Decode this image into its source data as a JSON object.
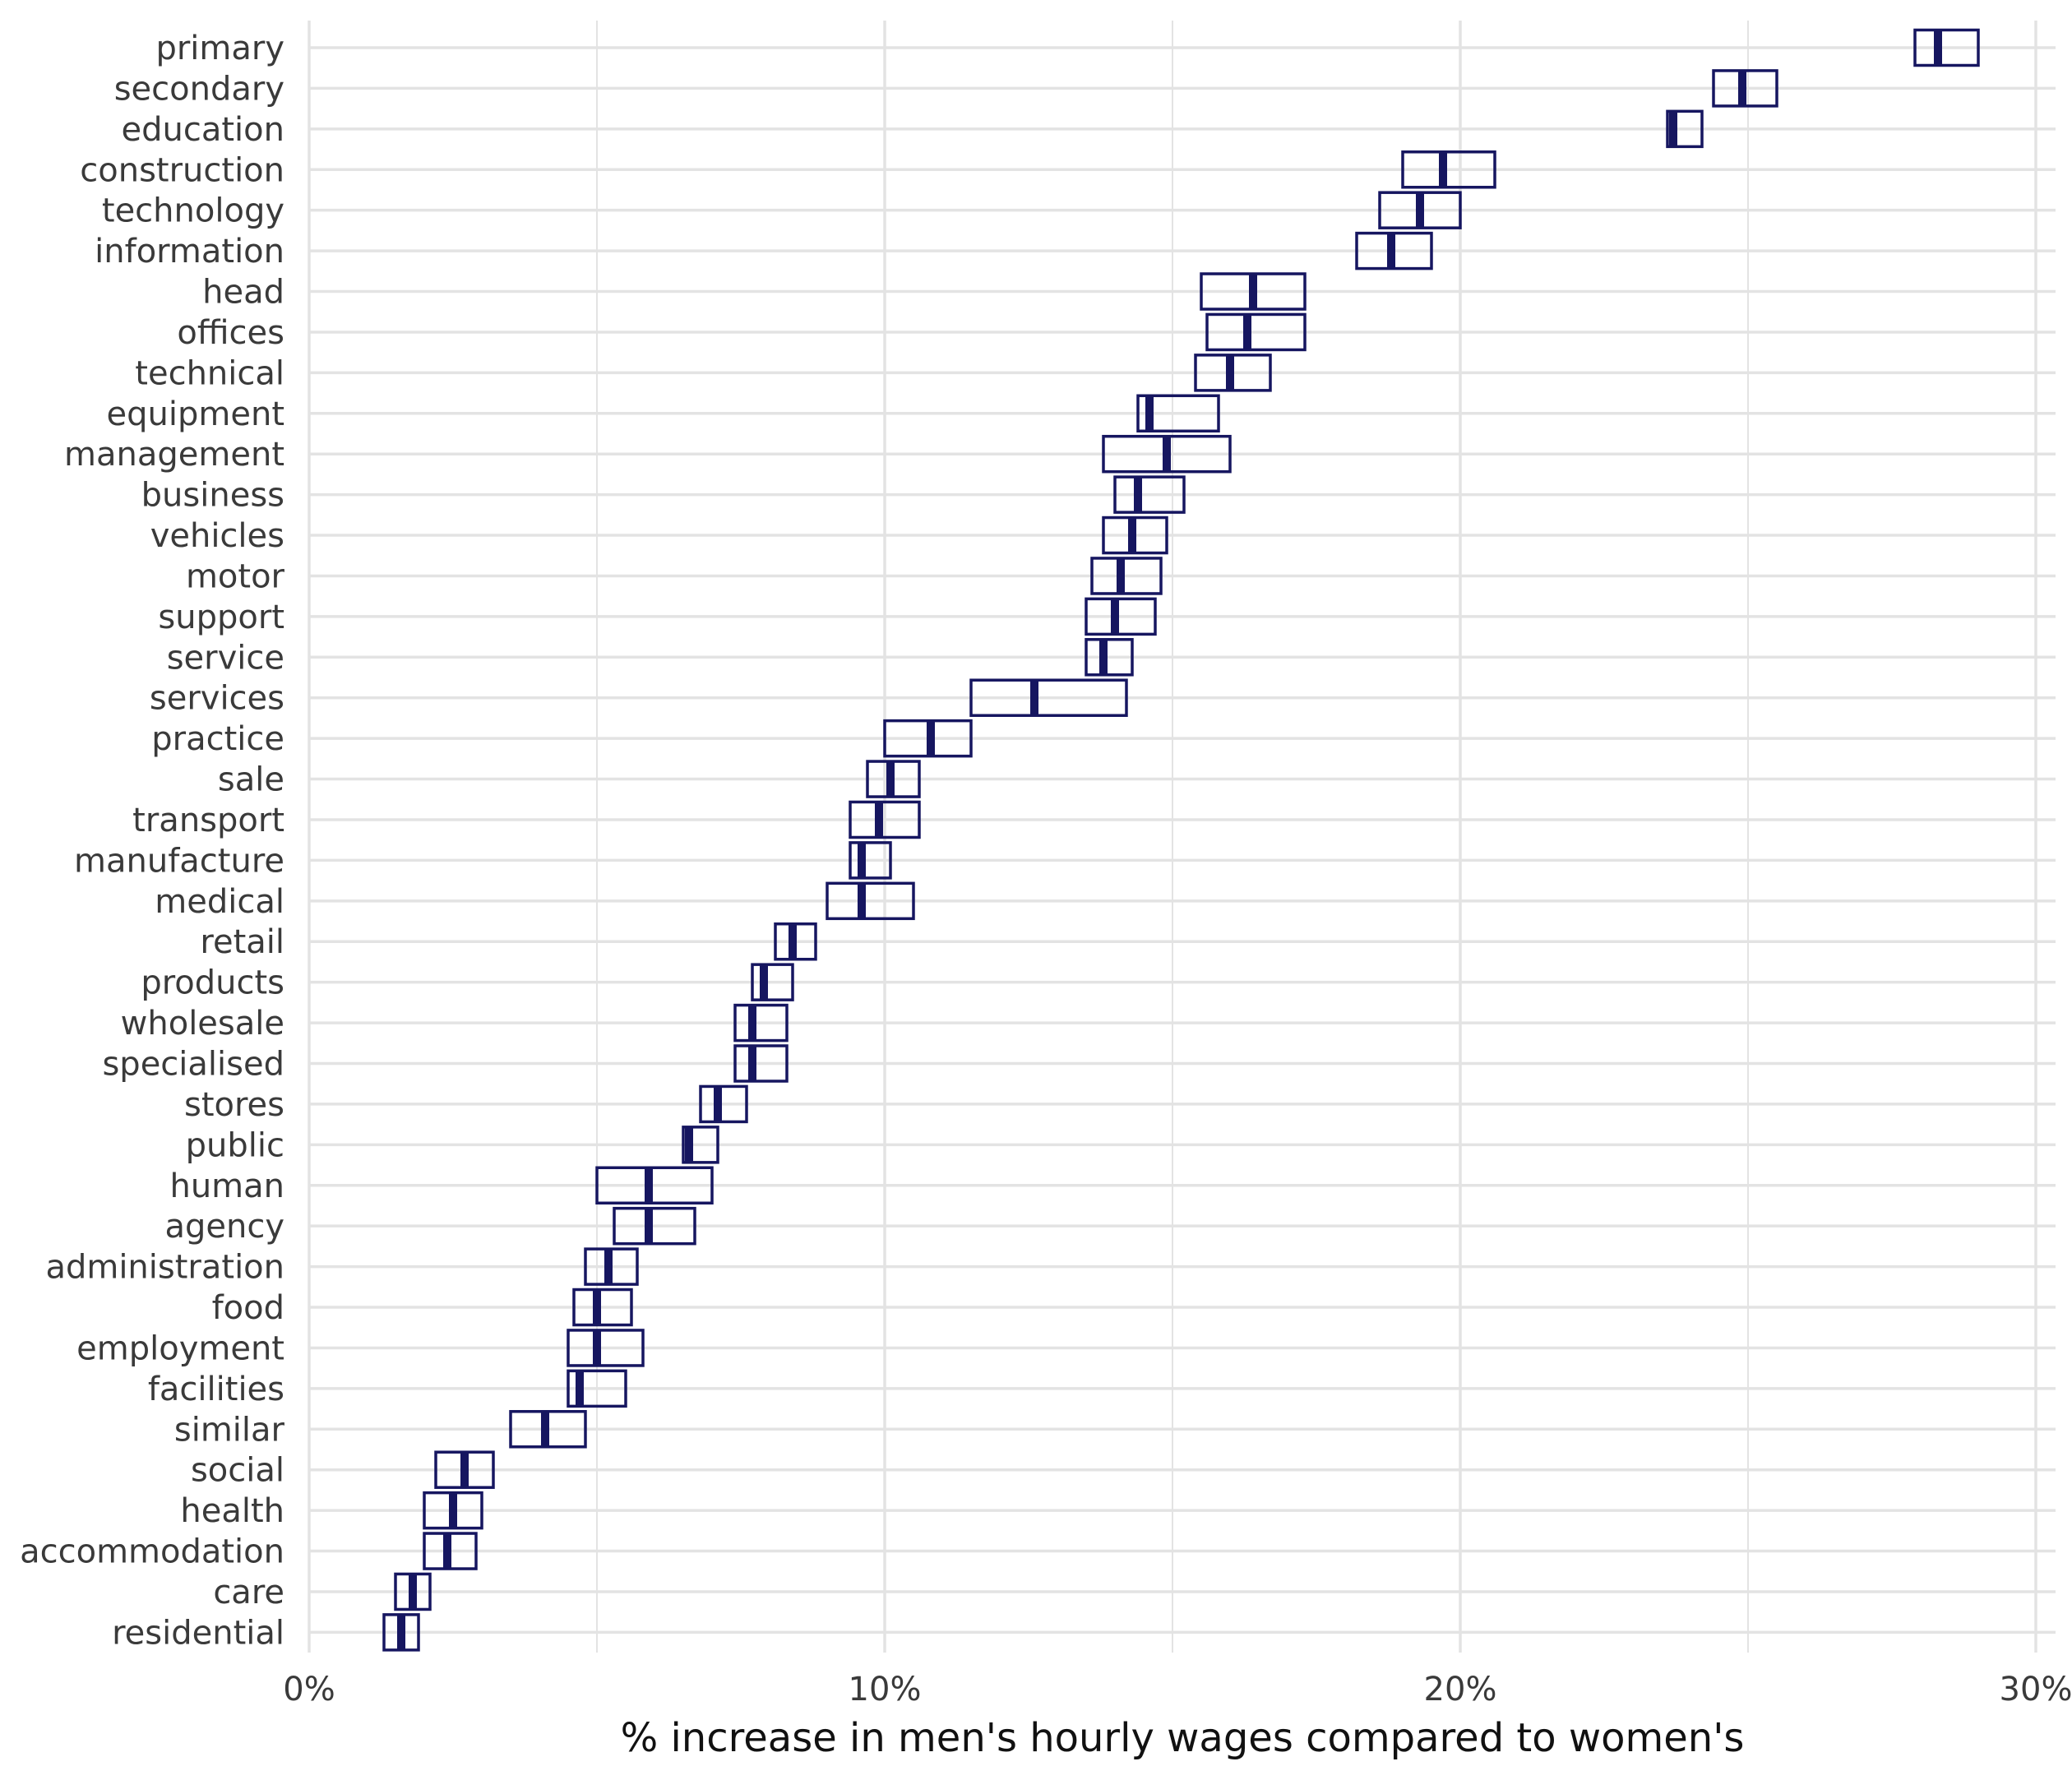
{
  "chart_data": {
    "type": "crossbar",
    "title": "",
    "xlabel": "% increase in men's hourly wages compared to women's",
    "ylabel": "",
    "xlim": [
      0,
      30.4
    ],
    "x_ticks": [
      0,
      10,
      20,
      30
    ],
    "x_tick_labels": [
      "0%",
      "10%",
      "20%",
      "30%"
    ],
    "grid": true,
    "legend": "none",
    "colors": {
      "box": "#161660",
      "grid": "#e3e3e3",
      "text": "#3a3a3a",
      "title": "#111111"
    },
    "categories": [
      "primary",
      "secondary",
      "education",
      "construction",
      "technology",
      "information",
      "head",
      "offices",
      "technical",
      "equipment",
      "management",
      "business",
      "vehicles",
      "motor",
      "support",
      "service",
      "services",
      "practice",
      "sale",
      "transport",
      "manufacture",
      "medical",
      "retail",
      "products",
      "wholesale",
      "specialised",
      "stores",
      "public",
      "human",
      "agency",
      "administration",
      "food",
      "employment",
      "facilities",
      "similar",
      "social",
      "health",
      "accommodation",
      "care",
      "residential"
    ],
    "estimate": [
      28.3,
      24.9,
      23.7,
      19.7,
      19.3,
      18.8,
      16.4,
      16.3,
      16.0,
      14.6,
      14.9,
      14.4,
      14.3,
      14.1,
      14.0,
      13.8,
      12.6,
      10.8,
      10.1,
      9.9,
      9.6,
      9.6,
      8.4,
      7.9,
      7.7,
      7.7,
      7.1,
      6.6,
      5.9,
      5.9,
      5.2,
      5.0,
      5.0,
      4.7,
      4.1,
      2.7,
      2.5,
      2.4,
      1.8,
      1.6
    ],
    "lower": [
      27.9,
      24.4,
      23.6,
      19.0,
      18.6,
      18.2,
      15.5,
      15.6,
      15.4,
      14.4,
      13.8,
      14.0,
      13.8,
      13.6,
      13.5,
      13.5,
      11.5,
      10.0,
      9.7,
      9.4,
      9.4,
      9.0,
      8.1,
      7.7,
      7.4,
      7.4,
      6.8,
      6.5,
      5.0,
      5.3,
      4.8,
      4.6,
      4.5,
      4.5,
      3.5,
      2.2,
      2.0,
      2.0,
      1.5,
      1.3
    ],
    "upper": [
      29.0,
      25.5,
      24.2,
      20.6,
      20.0,
      19.5,
      17.3,
      17.3,
      16.7,
      15.8,
      16.0,
      15.2,
      14.9,
      14.8,
      14.7,
      14.3,
      14.2,
      11.5,
      10.6,
      10.6,
      10.1,
      10.5,
      8.8,
      8.4,
      8.3,
      8.3,
      7.6,
      7.1,
      7.0,
      6.7,
      5.7,
      5.6,
      5.8,
      5.5,
      4.8,
      3.2,
      3.0,
      2.9,
      2.1,
      1.9
    ]
  }
}
